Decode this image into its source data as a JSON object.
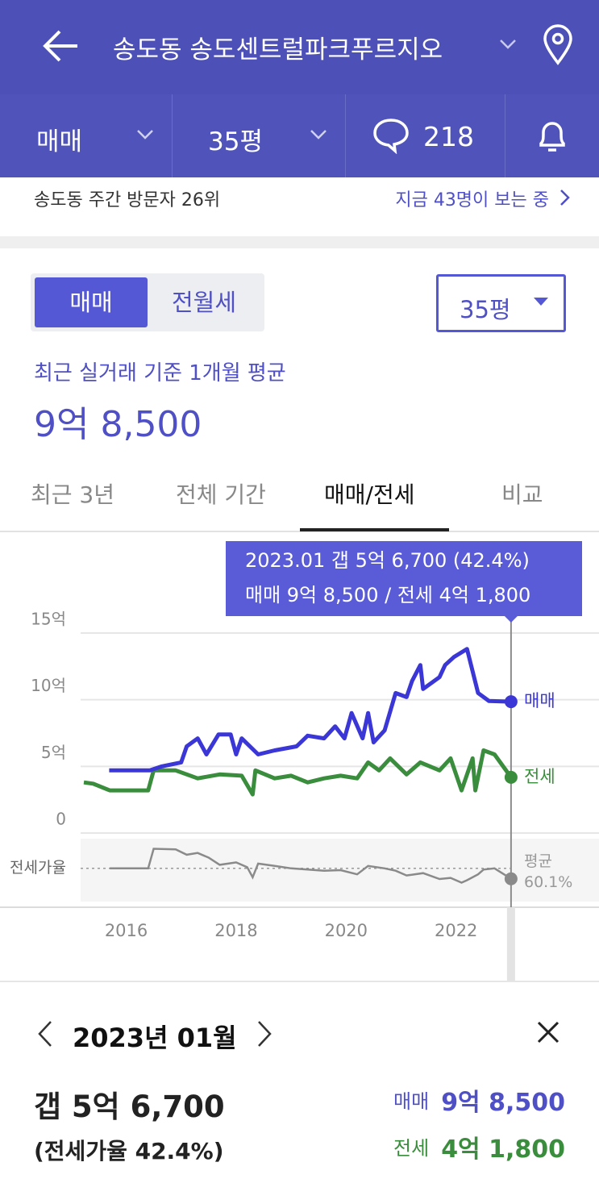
{
  "header": {
    "title": "송도동 송도센트럴파크푸르지오"
  },
  "toolbar": {
    "deal_type": "매매",
    "size": "35평",
    "comment_count": 218
  },
  "visitor": {
    "rank_text": "송도동 주간 방문자 26위",
    "viewers_text": "지금 43명이 보는 중"
  },
  "deal_toggle": [
    "매매",
    "전월세"
  ],
  "size_select": "35평",
  "summary": {
    "caption": "최근 실거래 기준 1개월 평균",
    "price": "9억 8,500"
  },
  "period_tabs": [
    "최근 3년",
    "전체 기간",
    "매매/전세",
    "비교"
  ],
  "chart_data": {
    "type": "line",
    "tooltip": [
      "2023.01 갭 5억 6,700 (42.4%)",
      "매매 9억 8,500 / 전세 4억 1,800"
    ],
    "xlim": [
      2015.2,
      2024.6
    ],
    "xticks": [
      2016,
      2018,
      2020,
      2022
    ],
    "ylim": [
      0,
      15
    ],
    "yticks": [
      0,
      {
        "value": 5,
        "label": "5억"
      },
      {
        "value": 10,
        "label": "10억"
      },
      {
        "value": 15,
        "label": "15억"
      }
    ],
    "grid": true,
    "series": [
      {
        "name": "매매",
        "color": "#3b36d6",
        "x": [
          2015.69,
          2016.43,
          2016.65,
          2017.0,
          2017.1,
          2017.3,
          2017.46,
          2017.68,
          2017.9,
          2018.0,
          2018.1,
          2018.4,
          2018.7,
          2019.1,
          2019.3,
          2019.6,
          2019.8,
          2019.97,
          2020.1,
          2020.3,
          2020.4,
          2020.5,
          2020.7,
          2020.9,
          2021.1,
          2021.2,
          2021.35,
          2021.4,
          2021.7,
          2021.8,
          2021.96,
          2022.2,
          2022.4,
          2022.6,
          2023.0
        ],
        "values": [
          4.7,
          4.7,
          5.0,
          5.3,
          6.5,
          7.1,
          5.9,
          7.4,
          7.4,
          5.9,
          7.1,
          5.9,
          6.2,
          6.5,
          7.3,
          7.1,
          8.0,
          7.1,
          9.0,
          7.1,
          9.0,
          6.8,
          7.7,
          10.5,
          10.2,
          11.4,
          12.6,
          10.8,
          11.7,
          12.6,
          13.2,
          13.8,
          10.5,
          9.9,
          9.85
        ]
      },
      {
        "name": "전세",
        "color": "#3a8d3c",
        "x": [
          2015.23,
          2015.4,
          2015.7,
          2016.4,
          2016.5,
          2016.9,
          2017.3,
          2017.7,
          2018.1,
          2018.3,
          2018.35,
          2018.7,
          2019.0,
          2019.3,
          2019.6,
          2019.9,
          2020.2,
          2020.4,
          2020.6,
          2020.8,
          2021.1,
          2021.35,
          2021.7,
          2021.9,
          2022.1,
          2022.3,
          2022.35,
          2022.5,
          2022.7,
          2023.0
        ],
        "values": [
          3.8,
          3.7,
          3.2,
          3.2,
          4.7,
          4.7,
          4.1,
          4.4,
          4.3,
          2.9,
          4.7,
          4.1,
          4.3,
          3.8,
          4.1,
          4.3,
          4.1,
          5.3,
          4.7,
          5.6,
          4.4,
          5.3,
          4.7,
          5.6,
          3.2,
          5.6,
          3.2,
          6.2,
          5.9,
          4.18
        ]
      }
    ],
    "ratio": {
      "name": "전세가율",
      "color": "#8a8a8a",
      "ylim": [
        4,
        110
      ],
      "x": [
        2015.7,
        2016.4,
        2016.5,
        2016.9,
        2017.1,
        2017.3,
        2017.5,
        2017.7,
        2018.0,
        2018.2,
        2018.3,
        2018.4,
        2018.7,
        2019.0,
        2019.3,
        2019.6,
        2019.9,
        2020.2,
        2020.4,
        2020.7,
        2020.9,
        2021.1,
        2021.4,
        2021.7,
        2021.9,
        2022.1,
        2022.2,
        2022.4,
        2022.5,
        2022.7,
        2023.0
      ],
      "values": [
        60,
        60,
        93,
        92,
        83,
        86,
        78,
        66,
        70,
        62,
        45,
        68,
        64,
        60,
        58,
        56,
        57,
        50,
        64,
        60,
        56,
        48,
        52,
        42,
        44,
        36,
        40,
        50,
        58,
        60,
        42.4
      ],
      "average": 60.1,
      "average_name": "평균",
      "average_label": "60.1%"
    }
  },
  "detail": {
    "month": "2023년 01월",
    "gap": "갭 5억 6,700",
    "ratio": "(전세가율 42.4%)",
    "sale_label": "매매",
    "sale_price": "9억 8,500",
    "jeonse_label": "전세",
    "jeonse_price": "4억 1,800"
  }
}
